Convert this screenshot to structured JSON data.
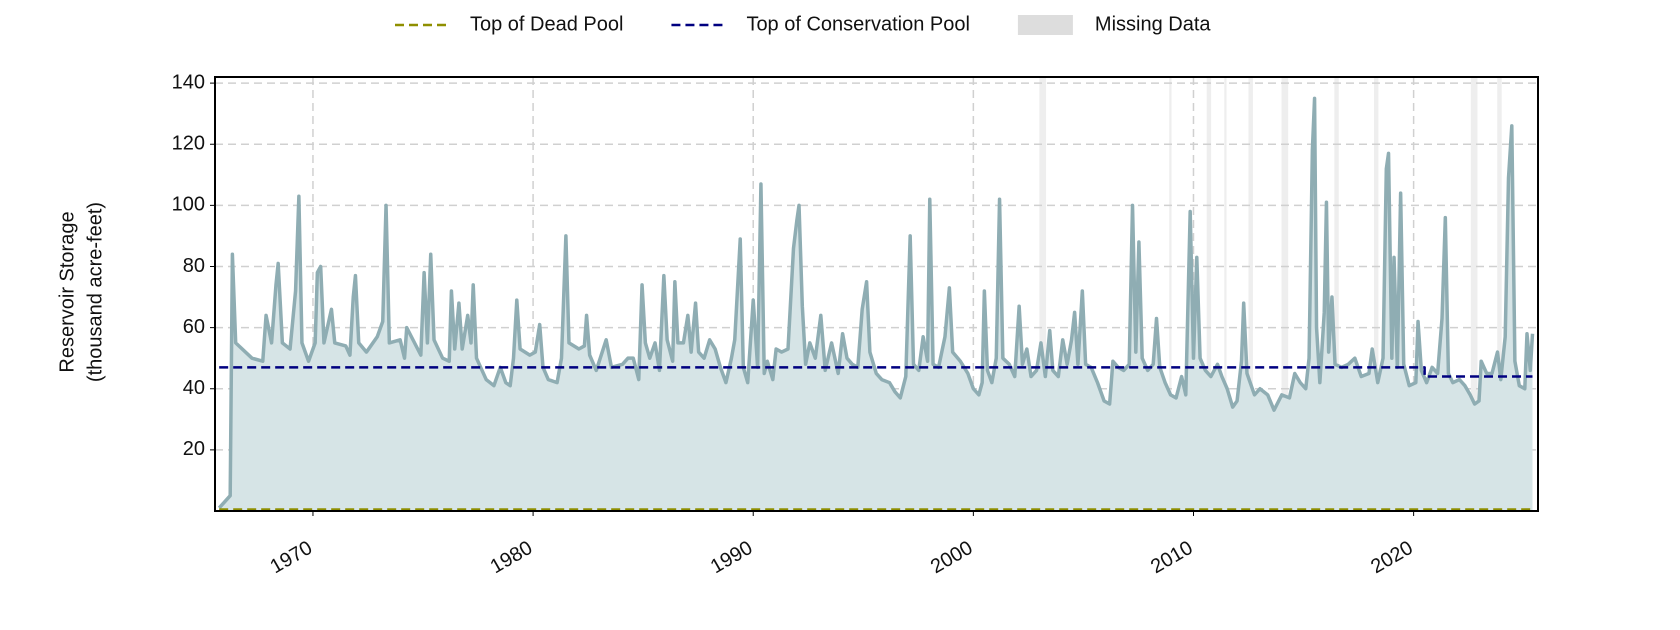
{
  "chart_data": {
    "type": "line",
    "ylabel": [
      "Reservoir Storage",
      "(thousand acre-feet)"
    ],
    "xlim": [
      1965.55,
      2025.65
    ],
    "xticks": [
      1970,
      1980,
      1990,
      2000,
      2010,
      2020
    ],
    "ylim": [
      0,
      142
    ],
    "yticks": [
      20,
      40,
      60,
      80,
      100,
      120,
      140
    ],
    "grid": true,
    "missing_data": {
      "name": "Missing Data",
      "color": "#dddddd",
      "spans": [
        [
          2003.0,
          2003.3
        ],
        [
          2008.9,
          2009.0
        ],
        [
          2010.6,
          2010.8
        ],
        [
          2011.4,
          2011.5
        ],
        [
          2012.5,
          2012.7
        ],
        [
          2014.0,
          2014.3
        ],
        [
          2016.4,
          2016.6
        ],
        [
          2018.2,
          2018.4
        ],
        [
          2022.6,
          2022.9
        ],
        [
          2023.8,
          2024.0
        ]
      ]
    },
    "series": [
      {
        "color": "#8fadb3",
        "fill": "#d6e4e6",
        "x": [
          1965.74,
          1966.24,
          1966.34,
          1966.49,
          1967.23,
          1967.72,
          1967.87,
          1968.12,
          1968.32,
          1968.42,
          1968.61,
          1968.96,
          1969.21,
          1969.36,
          1969.5,
          1969.8,
          1970.1,
          1970.2,
          1970.35,
          1970.5,
          1970.84,
          1970.99,
          1971.49,
          1971.68,
          1971.83,
          1971.93,
          1972.08,
          1972.43,
          1972.92,
          1973.17,
          1973.32,
          1973.47,
          1973.96,
          1974.16,
          1974.26,
          1974.9,
          1975.05,
          1975.2,
          1975.35,
          1975.5,
          1975.89,
          1976.19,
          1976.29,
          1976.44,
          1976.63,
          1976.78,
          1977.03,
          1977.18,
          1977.28,
          1977.43,
          1977.87,
          1978.22,
          1978.51,
          1978.76,
          1978.96,
          1979.11,
          1979.26,
          1979.41,
          1979.85,
          1980.1,
          1980.3,
          1980.45,
          1980.69,
          1981.09,
          1981.29,
          1981.49,
          1981.63,
          1982.08,
          1982.33,
          1982.43,
          1982.57,
          1982.87,
          1983.32,
          1983.56,
          1984.06,
          1984.31,
          1984.55,
          1984.8,
          1984.95,
          1985.1,
          1985.3,
          1985.54,
          1985.74,
          1985.94,
          1986.09,
          1986.34,
          1986.44,
          1986.58,
          1986.83,
          1987.03,
          1987.18,
          1987.38,
          1987.52,
          1987.77,
          1988.02,
          1988.27,
          1988.51,
          1988.76,
          1989.01,
          1989.16,
          1989.41,
          1989.55,
          1989.75,
          1990.0,
          1990.2,
          1990.35,
          1990.5,
          1990.64,
          1990.89,
          1991.04,
          1991.29,
          1991.58,
          1991.83,
          1991.98,
          1992.08,
          1992.23,
          1992.38,
          1992.57,
          1992.82,
          1993.07,
          1993.27,
          1993.56,
          1993.86,
          1994.06,
          1994.26,
          1994.5,
          1994.75,
          1994.95,
          1995.15,
          1995.3,
          1995.59,
          1995.84,
          1996.19,
          1996.44,
          1996.68,
          1996.93,
          1997.13,
          1997.28,
          1997.52,
          1997.72,
          1997.92,
          1998.02,
          1998.17,
          1998.42,
          1998.71,
          1998.91,
          1999.06,
          1999.41,
          1999.75,
          2000.0,
          2000.25,
          2000.4,
          2000.5,
          2000.64,
          2000.84,
          2001.04,
          2001.19,
          2001.34,
          2001.63,
          2001.88,
          2002.08,
          2002.23,
          2002.43,
          2002.62,
          2002.87,
          2003.07,
          2003.27,
          2003.47,
          2003.61,
          2003.86,
          2004.06,
          2004.26,
          2004.46,
          2004.6,
          2004.75,
          2004.95,
          2005.1,
          2005.35,
          2005.64,
          2005.94,
          2006.19,
          2006.34,
          2006.58,
          2006.83,
          2007.08,
          2007.23,
          2007.38,
          2007.52,
          2007.67,
          2007.92,
          2008.17,
          2008.32,
          2008.47,
          2008.71,
          2008.96,
          2009.21,
          2009.46,
          2009.65,
          2009.85,
          2010.0,
          2010.15,
          2010.3,
          2010.54,
          2010.79,
          2011.09,
          2011.29,
          2011.53,
          2011.78,
          2011.98,
          2012.18,
          2012.28,
          2012.43,
          2012.77,
          2013.02,
          2013.37,
          2013.66,
          2014.01,
          2014.36,
          2014.6,
          2014.85,
          2015.1,
          2015.25,
          2015.4,
          2015.5,
          2015.59,
          2015.74,
          2015.94,
          2016.04,
          2016.14,
          2016.29,
          2016.43,
          2016.73,
          2017.03,
          2017.33,
          2017.62,
          2017.97,
          2018.12,
          2018.37,
          2018.61,
          2018.76,
          2018.86,
          2019.01,
          2019.11,
          2019.26,
          2019.41,
          2019.55,
          2019.8,
          2020.1,
          2020.2,
          2020.35,
          2020.59,
          2020.84,
          2021.09,
          2021.29,
          2021.44,
          2021.58,
          2021.78,
          2022.08,
          2022.33,
          2022.57,
          2022.77,
          2022.97,
          2023.07,
          2023.32,
          2023.56,
          2023.81,
          2023.96,
          2024.16,
          2024.31,
          2024.46,
          2024.6,
          2024.8,
          2025.05,
          2025.15,
          2025.3,
          2025.4
        ],
        "values": [
          1,
          5,
          84,
          55,
          50,
          49,
          64,
          55,
          74,
          81,
          55,
          53,
          72,
          103,
          55,
          49,
          55,
          78,
          80,
          55,
          66,
          55,
          54,
          51,
          70,
          77,
          55,
          52,
          57,
          62,
          100,
          55,
          56,
          50,
          60,
          51,
          78,
          55,
          84,
          56,
          50,
          49,
          72,
          53,
          68,
          53,
          64,
          55,
          74,
          50,
          43,
          41,
          47,
          42,
          41,
          50,
          69,
          53,
          51,
          52,
          61,
          47,
          43,
          42,
          50,
          90,
          55,
          53,
          54,
          64,
          51,
          46,
          56,
          47,
          48,
          50,
          50,
          43,
          74,
          55,
          50,
          55,
          46,
          77,
          56,
          49,
          75,
          55,
          55,
          64,
          52,
          68,
          52,
          50,
          56,
          53,
          47,
          42,
          50,
          56,
          89,
          47,
          42,
          69,
          47,
          107,
          45,
          49,
          43,
          53,
          52,
          53,
          86,
          95,
          100,
          67,
          48,
          55,
          50,
          64,
          46,
          55,
          45,
          58,
          50,
          48,
          47,
          66,
          75,
          52,
          45,
          43,
          42,
          39,
          37,
          44,
          90,
          48,
          46,
          57,
          49,
          102,
          48,
          47,
          57,
          73,
          52,
          49,
          45,
          40,
          38,
          42,
          72,
          46,
          42,
          50,
          102,
          50,
          48,
          44,
          67,
          48,
          53,
          44,
          46,
          55,
          44,
          59,
          46,
          44,
          56,
          48,
          56,
          65,
          48,
          72,
          48,
          47,
          42,
          36,
          35,
          49,
          47,
          46,
          48,
          100,
          52,
          88,
          50,
          46,
          48,
          63,
          47,
          42,
          38,
          37,
          44,
          38,
          98,
          50,
          83,
          50,
          46,
          44,
          48,
          44,
          40,
          34,
          36,
          49,
          68,
          45,
          38,
          40,
          38,
          33,
          38,
          37,
          45,
          42,
          40,
          50,
          118,
          135,
          60,
          42,
          65,
          101,
          52,
          70,
          48,
          47,
          48,
          50,
          44,
          45,
          53,
          42,
          50,
          112,
          117,
          50,
          83,
          47,
          104,
          48,
          41,
          42,
          62,
          46,
          42,
          47,
          45,
          63,
          96,
          45,
          42,
          43,
          41,
          38,
          35,
          36,
          49,
          45,
          45,
          52,
          43,
          57,
          109,
          126,
          49,
          41,
          40,
          58,
          46,
          58
        ]
      },
      {
        "name": "Top of Dead Pool",
        "color": "#8f8f00",
        "dash": true,
        "x": [
          1965.74,
          2025.4
        ],
        "values": [
          0.5,
          0.5
        ]
      },
      {
        "name": "Top of Conservation Pool",
        "color": "#000080",
        "dash": true,
        "x": [
          1965.74,
          2020.5,
          2020.5,
          2025.4
        ],
        "values": [
          47,
          47,
          44,
          44
        ]
      }
    ]
  }
}
